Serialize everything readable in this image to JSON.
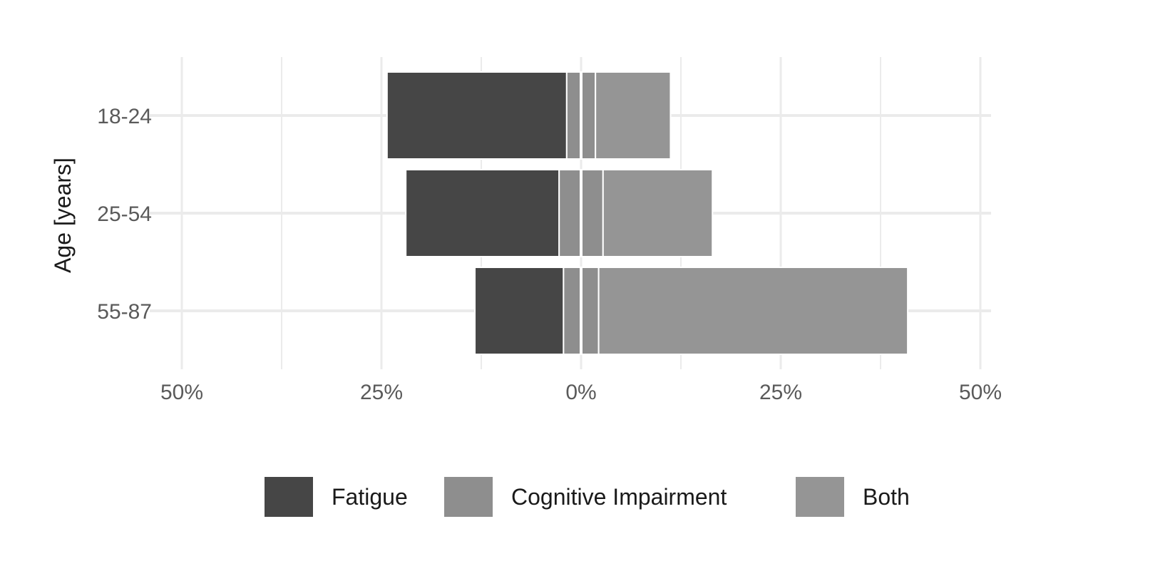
{
  "chart_data": {
    "type": "bar",
    "orientation": "horizontal",
    "stacking": "diverging",
    "title": "",
    "xlabel": "",
    "ylabel": "Age [years]",
    "categories": [
      "18-24",
      "25-54",
      "55-87"
    ],
    "series": [
      {
        "name": "Fatigue",
        "side": "left",
        "color": "#464646",
        "values": [
          22.5,
          19.2,
          11.1
        ]
      },
      {
        "name": "Cognitive Impairment",
        "side": "split",
        "color": "#8e8e8e",
        "values": [
          3.6,
          5.5,
          4.4
        ]
      },
      {
        "name": "Both",
        "side": "right",
        "color": "#959595",
        "values": [
          9.4,
          13.7,
          38.7
        ]
      }
    ],
    "xlim": [
      -50,
      50
    ],
    "xticks": [
      -50,
      -25,
      0,
      25,
      50
    ],
    "xtick_labels": [
      "50%",
      "25%",
      "0%",
      "25%",
      "50%"
    ],
    "grid": true,
    "legend_position": "bottom"
  }
}
